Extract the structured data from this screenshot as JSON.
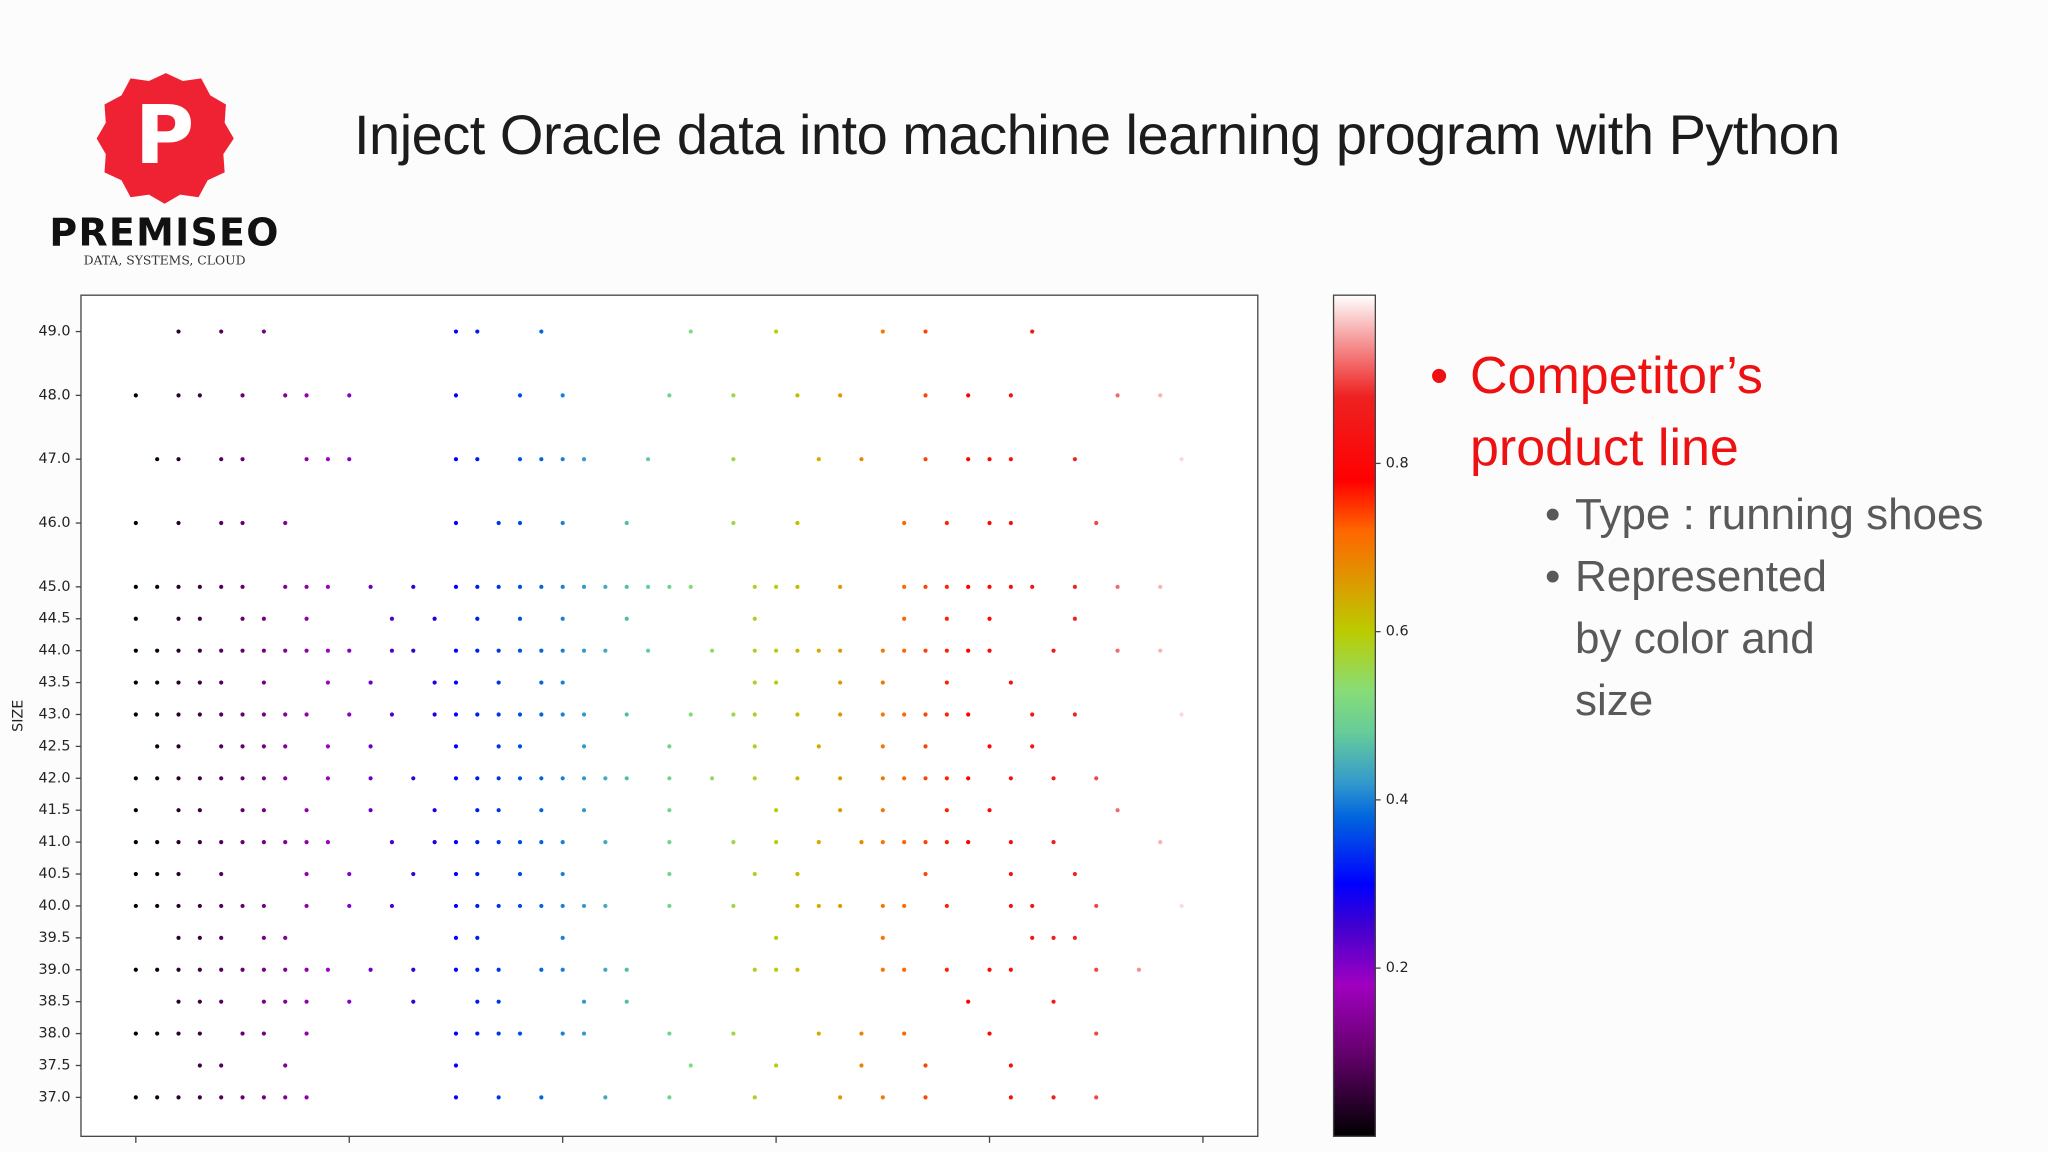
{
  "logo": {
    "letter": "P",
    "name": "PREMISEO",
    "tagline": "DATA, SYSTEMS, CLOUD"
  },
  "title": "Inject Oracle data into machine learning program with Python",
  "bullets": {
    "main": "Competitor’s product line",
    "sub": [
      "Type : running shoes",
      "Represented by color and size"
    ]
  },
  "chart_data": {
    "type": "scatter",
    "ylabel": "SIZE",
    "colormap": "nipy_spectral",
    "xlim": [
      -0.257,
      5.257
    ],
    "xticks": [
      0,
      1,
      2,
      3,
      4,
      5
    ],
    "ylim": [
      36.39,
      49.57
    ],
    "yticks": [
      {
        "value": 37,
        "label": "37.0"
      },
      37.5,
      {
        "value": 38,
        "label": "38.0"
      },
      38.5,
      {
        "value": 39,
        "label": "39.0"
      },
      39.5,
      {
        "value": 40,
        "label": "40.0"
      },
      40.5,
      {
        "value": 41,
        "label": "41.0"
      },
      41.5,
      {
        "value": 42,
        "label": "42.0"
      },
      42.5,
      {
        "value": 43,
        "label": "43.0"
      },
      43.5,
      {
        "value": 44,
        "label": "44.0"
      },
      44.5,
      {
        "value": 45,
        "label": "45.0"
      },
      {
        "value": 46,
        "label": "46.0"
      },
      {
        "value": 47,
        "label": "47.0"
      },
      {
        "value": 48,
        "label": "48.0"
      },
      {
        "value": 49,
        "label": "49.0"
      }
    ],
    "clim": [
      0,
      1
    ],
    "cticks": [
      0.2,
      0.4,
      0.6,
      0.8
    ],
    "rows": [
      {
        "y": 49,
        "x": [
          0.2,
          0.4,
          0.6,
          1.5,
          1.6,
          1.9,
          2.6,
          3.0,
          3.5,
          3.7,
          4.2
        ],
        "c": [
          0.04,
          0.08,
          0.12,
          0.3,
          0.32,
          0.38,
          0.52,
          0.6,
          0.7,
          0.74,
          0.84
        ]
      },
      {
        "y": 48,
        "x": [
          0,
          0.2,
          0.3,
          0.5,
          0.7,
          0.8,
          1.0,
          1.5,
          1.8,
          2.0,
          2.5,
          2.8,
          3.1,
          3.3,
          3.7,
          3.9,
          4.1,
          4.6,
          4.8
        ],
        "c": [
          0,
          0.04,
          0.06,
          0.1,
          0.14,
          0.16,
          0.2,
          0.3,
          0.36,
          0.4,
          0.5,
          0.56,
          0.62,
          0.66,
          0.74,
          0.78,
          0.82,
          0.92,
          0.96
        ]
      },
      {
        "y": 47,
        "x": [
          0.1,
          0.2,
          0.4,
          0.5,
          0.8,
          0.9,
          1.0,
          1.5,
          1.6,
          1.8,
          1.9,
          2.0,
          2.1,
          2.4,
          2.8,
          3.2,
          3.4,
          3.7,
          3.9,
          4.0,
          4.1,
          4.4,
          4.9
        ],
        "c": [
          0.02,
          0.04,
          0.08,
          0.1,
          0.16,
          0.18,
          0.2,
          0.3,
          0.32,
          0.36,
          0.38,
          0.4,
          0.42,
          0.48,
          0.56,
          0.64,
          0.68,
          0.74,
          0.78,
          0.8,
          0.82,
          0.88,
          0.98
        ]
      },
      {
        "y": 46,
        "x": [
          0,
          0.2,
          0.4,
          0.5,
          0.7,
          1.5,
          1.7,
          1.8,
          2.0,
          2.3,
          2.8,
          3.1,
          3.6,
          3.8,
          4.0,
          4.1,
          4.5
        ],
        "c": [
          0,
          0.04,
          0.08,
          0.1,
          0.14,
          0.3,
          0.34,
          0.36,
          0.4,
          0.46,
          0.56,
          0.62,
          0.72,
          0.76,
          0.8,
          0.82,
          0.9
        ]
      },
      {
        "y": 45,
        "x": [
          0,
          0.1,
          0.2,
          0.3,
          0.4,
          0.5,
          0.7,
          0.8,
          0.9,
          1.1,
          1.3,
          1.5,
          1.6,
          1.7,
          1.8,
          1.9,
          2.0,
          2.1,
          2.2,
          2.3,
          2.4,
          2.5,
          2.6,
          2.9,
          3.0,
          3.1,
          3.3,
          3.6,
          3.7,
          3.8,
          3.9,
          4.0,
          4.1,
          4.2,
          4.4,
          4.6,
          4.8
        ],
        "c": [
          0,
          0.02,
          0.04,
          0.06,
          0.08,
          0.1,
          0.14,
          0.16,
          0.18,
          0.22,
          0.26,
          0.3,
          0.32,
          0.34,
          0.36,
          0.38,
          0.4,
          0.42,
          0.44,
          0.46,
          0.48,
          0.5,
          0.52,
          0.58,
          0.6,
          0.62,
          0.66,
          0.72,
          0.74,
          0.76,
          0.78,
          0.8,
          0.82,
          0.84,
          0.88,
          0.92,
          0.96
        ]
      },
      {
        "y": 44.5,
        "x": [
          0,
          0.2,
          0.3,
          0.5,
          0.6,
          0.8,
          1.2,
          1.4,
          1.6,
          1.8,
          2.0,
          2.3,
          2.9,
          3.6,
          3.8,
          4.0,
          4.4
        ],
        "c": [
          0,
          0.04,
          0.06,
          0.1,
          0.12,
          0.16,
          0.24,
          0.28,
          0.32,
          0.36,
          0.4,
          0.46,
          0.58,
          0.72,
          0.76,
          0.8,
          0.88
        ]
      },
      {
        "y": 44,
        "x": [
          0,
          0.1,
          0.2,
          0.3,
          0.4,
          0.5,
          0.6,
          0.7,
          0.8,
          0.9,
          1.0,
          1.2,
          1.3,
          1.5,
          1.6,
          1.7,
          1.8,
          1.9,
          2.0,
          2.1,
          2.2,
          2.4,
          2.7,
          2.9,
          3.0,
          3.1,
          3.2,
          3.3,
          3.5,
          3.6,
          3.7,
          3.8,
          3.9,
          4.0,
          4.3,
          4.6,
          4.8
        ],
        "c": [
          0,
          0.02,
          0.04,
          0.06,
          0.08,
          0.1,
          0.12,
          0.14,
          0.16,
          0.18,
          0.2,
          0.24,
          0.26,
          0.3,
          0.32,
          0.34,
          0.36,
          0.38,
          0.4,
          0.42,
          0.44,
          0.48,
          0.54,
          0.58,
          0.6,
          0.62,
          0.64,
          0.66,
          0.7,
          0.72,
          0.74,
          0.76,
          0.78,
          0.8,
          0.86,
          0.92,
          0.96
        ]
      },
      {
        "y": 43.5,
        "x": [
          0,
          0.1,
          0.2,
          0.3,
          0.4,
          0.6,
          0.9,
          1.1,
          1.4,
          1.5,
          1.7,
          1.9,
          2.0,
          2.9,
          3.0,
          3.3,
          3.5,
          3.8,
          4.1
        ],
        "c": [
          0,
          0.02,
          0.04,
          0.06,
          0.08,
          0.12,
          0.18,
          0.22,
          0.28,
          0.3,
          0.34,
          0.38,
          0.4,
          0.58,
          0.6,
          0.66,
          0.7,
          0.76,
          0.82
        ]
      },
      {
        "y": 43,
        "x": [
          0,
          0.1,
          0.2,
          0.3,
          0.4,
          0.5,
          0.6,
          0.7,
          0.8,
          1.0,
          1.2,
          1.4,
          1.5,
          1.6,
          1.7,
          1.8,
          1.9,
          2.0,
          2.1,
          2.3,
          2.6,
          2.8,
          2.9,
          3.1,
          3.3,
          3.5,
          3.6,
          3.7,
          3.8,
          3.9,
          4.2,
          4.4,
          4.9
        ],
        "c": [
          0,
          0.02,
          0.04,
          0.06,
          0.08,
          0.1,
          0.12,
          0.14,
          0.16,
          0.2,
          0.24,
          0.28,
          0.3,
          0.32,
          0.34,
          0.36,
          0.38,
          0.4,
          0.42,
          0.46,
          0.52,
          0.56,
          0.58,
          0.62,
          0.66,
          0.7,
          0.72,
          0.74,
          0.76,
          0.78,
          0.84,
          0.88,
          0.98
        ]
      },
      {
        "y": 42.5,
        "x": [
          0.1,
          0.2,
          0.4,
          0.5,
          0.6,
          0.7,
          0.9,
          1.1,
          1.5,
          1.7,
          1.8,
          2.1,
          2.5,
          2.9,
          3.2,
          3.5,
          3.7,
          4.0,
          4.2
        ],
        "c": [
          0.02,
          0.04,
          0.08,
          0.1,
          0.12,
          0.14,
          0.18,
          0.22,
          0.3,
          0.34,
          0.36,
          0.42,
          0.5,
          0.58,
          0.64,
          0.7,
          0.74,
          0.8,
          0.84
        ]
      },
      {
        "y": 42,
        "x": [
          0,
          0.1,
          0.2,
          0.3,
          0.4,
          0.5,
          0.6,
          0.7,
          0.9,
          1.1,
          1.3,
          1.5,
          1.6,
          1.7,
          1.8,
          1.9,
          2.0,
          2.1,
          2.2,
          2.3,
          2.5,
          2.7,
          2.9,
          3.1,
          3.3,
          3.5,
          3.6,
          3.7,
          3.8,
          3.9,
          4.1,
          4.3,
          4.5
        ],
        "c": [
          0,
          0.02,
          0.04,
          0.06,
          0.08,
          0.1,
          0.12,
          0.14,
          0.18,
          0.22,
          0.26,
          0.3,
          0.32,
          0.34,
          0.36,
          0.38,
          0.4,
          0.42,
          0.44,
          0.46,
          0.5,
          0.54,
          0.58,
          0.62,
          0.66,
          0.7,
          0.72,
          0.74,
          0.76,
          0.78,
          0.82,
          0.86,
          0.9
        ]
      },
      {
        "y": 41.5,
        "x": [
          0,
          0.2,
          0.3,
          0.5,
          0.6,
          0.8,
          1.1,
          1.4,
          1.6,
          1.7,
          1.9,
          2.1,
          2.5,
          3.0,
          3.3,
          3.5,
          3.8,
          4.0,
          4.6
        ],
        "c": [
          0,
          0.04,
          0.06,
          0.1,
          0.12,
          0.16,
          0.22,
          0.28,
          0.32,
          0.34,
          0.38,
          0.42,
          0.5,
          0.6,
          0.66,
          0.7,
          0.76,
          0.8,
          0.92
        ]
      },
      {
        "y": 41,
        "x": [
          0,
          0.1,
          0.2,
          0.3,
          0.4,
          0.5,
          0.6,
          0.7,
          0.8,
          0.9,
          1.2,
          1.4,
          1.5,
          1.6,
          1.7,
          1.8,
          1.9,
          2.0,
          2.2,
          2.5,
          2.8,
          3.0,
          3.2,
          3.4,
          3.5,
          3.6,
          3.7,
          3.8,
          3.9,
          4.1,
          4.3,
          4.8
        ],
        "c": [
          0,
          0.02,
          0.04,
          0.06,
          0.08,
          0.1,
          0.12,
          0.14,
          0.16,
          0.18,
          0.24,
          0.28,
          0.3,
          0.32,
          0.34,
          0.36,
          0.38,
          0.4,
          0.44,
          0.5,
          0.56,
          0.6,
          0.64,
          0.68,
          0.7,
          0.72,
          0.74,
          0.76,
          0.78,
          0.82,
          0.86,
          0.96
        ]
      },
      {
        "y": 40.5,
        "x": [
          0,
          0.1,
          0.2,
          0.4,
          0.8,
          1.0,
          1.3,
          1.5,
          1.6,
          1.8,
          2.0,
          2.5,
          2.9,
          3.1,
          3.7,
          4.1,
          4.4
        ],
        "c": [
          0,
          0.02,
          0.04,
          0.08,
          0.16,
          0.2,
          0.26,
          0.3,
          0.32,
          0.36,
          0.4,
          0.5,
          0.58,
          0.62,
          0.74,
          0.82,
          0.88
        ]
      },
      {
        "y": 40,
        "x": [
          0,
          0.1,
          0.2,
          0.3,
          0.4,
          0.5,
          0.6,
          0.8,
          1.0,
          1.2,
          1.5,
          1.6,
          1.7,
          1.8,
          1.9,
          2.0,
          2.1,
          2.2,
          2.5,
          2.8,
          3.1,
          3.2,
          3.3,
          3.5,
          3.6,
          3.8,
          4.1,
          4.2,
          4.5,
          4.9
        ],
        "c": [
          0,
          0.02,
          0.04,
          0.06,
          0.08,
          0.1,
          0.12,
          0.16,
          0.2,
          0.24,
          0.3,
          0.32,
          0.34,
          0.36,
          0.38,
          0.4,
          0.42,
          0.44,
          0.5,
          0.56,
          0.62,
          0.64,
          0.66,
          0.7,
          0.72,
          0.76,
          0.82,
          0.84,
          0.9,
          0.98
        ]
      },
      {
        "y": 39.5,
        "x": [
          0.2,
          0.3,
          0.4,
          0.6,
          0.7,
          1.5,
          1.6,
          2.0,
          3.0,
          3.5,
          4.2,
          4.3,
          4.4
        ],
        "c": [
          0.04,
          0.06,
          0.08,
          0.12,
          0.14,
          0.3,
          0.32,
          0.4,
          0.6,
          0.7,
          0.84,
          0.86,
          0.88
        ]
      },
      {
        "y": 39,
        "x": [
          0,
          0.1,
          0.2,
          0.3,
          0.4,
          0.5,
          0.6,
          0.7,
          0.8,
          0.9,
          1.1,
          1.3,
          1.5,
          1.6,
          1.7,
          1.9,
          2.0,
          2.2,
          2.3,
          2.9,
          3.0,
          3.1,
          3.5,
          3.6,
          3.8,
          4.0,
          4.1,
          4.5,
          4.7
        ],
        "c": [
          0,
          0.02,
          0.04,
          0.06,
          0.08,
          0.1,
          0.12,
          0.14,
          0.16,
          0.18,
          0.22,
          0.26,
          0.3,
          0.32,
          0.34,
          0.38,
          0.4,
          0.44,
          0.46,
          0.58,
          0.6,
          0.62,
          0.7,
          0.72,
          0.76,
          0.8,
          0.82,
          0.9,
          0.94
        ]
      },
      {
        "y": 38.5,
        "x": [
          0.2,
          0.3,
          0.4,
          0.6,
          0.7,
          0.8,
          1.0,
          1.3,
          1.6,
          1.7,
          2.1,
          2.3,
          3.9,
          4.3
        ],
        "c": [
          0.04,
          0.06,
          0.08,
          0.12,
          0.14,
          0.16,
          0.2,
          0.26,
          0.32,
          0.34,
          0.42,
          0.46,
          0.78,
          0.86
        ]
      },
      {
        "y": 38,
        "x": [
          0,
          0.1,
          0.2,
          0.3,
          0.5,
          0.6,
          0.8,
          1.5,
          1.6,
          1.7,
          1.8,
          2.0,
          2.1,
          2.5,
          2.8,
          3.2,
          3.4,
          3.6,
          4.0,
          4.5
        ],
        "c": [
          0,
          0.02,
          0.04,
          0.06,
          0.1,
          0.12,
          0.16,
          0.3,
          0.32,
          0.34,
          0.36,
          0.4,
          0.42,
          0.5,
          0.56,
          0.64,
          0.68,
          0.72,
          0.8,
          0.9
        ]
      },
      {
        "y": 37.5,
        "x": [
          0.3,
          0.4,
          0.7,
          1.5,
          2.6,
          3.0,
          3.4,
          3.7,
          4.1
        ],
        "c": [
          0.06,
          0.08,
          0.14,
          0.3,
          0.52,
          0.6,
          0.68,
          0.74,
          0.82
        ]
      },
      {
        "y": 37,
        "x": [
          0,
          0.1,
          0.2,
          0.3,
          0.4,
          0.5,
          0.6,
          0.7,
          0.8,
          1.5,
          1.7,
          1.9,
          2.2,
          2.5,
          2.9,
          3.3,
          3.5,
          3.7,
          4.1,
          4.3,
          4.5
        ],
        "c": [
          0,
          0.02,
          0.04,
          0.06,
          0.08,
          0.1,
          0.12,
          0.14,
          0.16,
          0.3,
          0.34,
          0.38,
          0.44,
          0.5,
          0.58,
          0.66,
          0.7,
          0.74,
          0.82,
          0.86,
          0.9
        ]
      }
    ]
  }
}
